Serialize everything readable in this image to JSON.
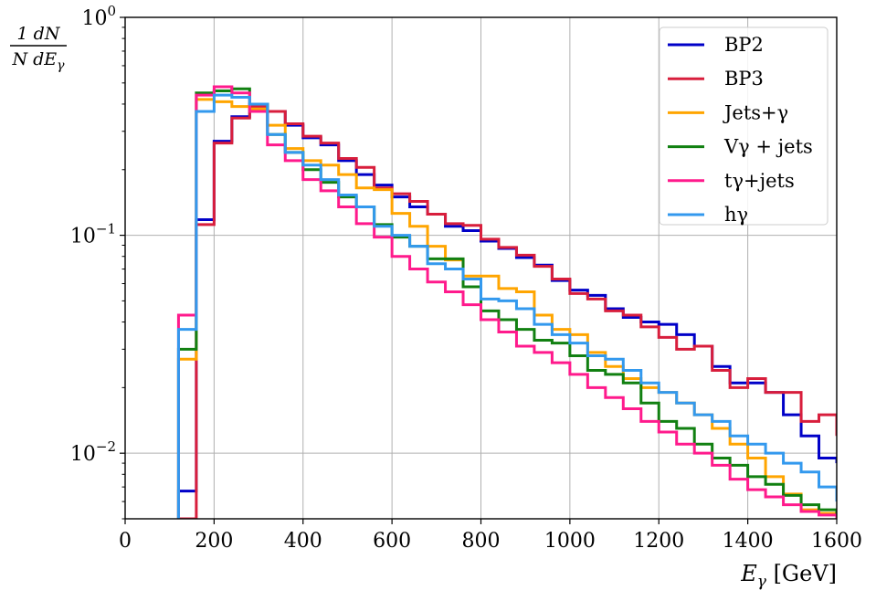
{
  "chart_data": {
    "type": "line",
    "step": true,
    "xscale": "linear",
    "yscale": "log",
    "xlim": [
      0,
      1600
    ],
    "ylim": [
      0.005,
      1
    ],
    "grid": true,
    "legend_position": "top-right",
    "xlabel": {
      "symbol": "E",
      "sub": "γ",
      "unit": " [GeV]"
    },
    "ylabel": {
      "numerator": "1 dN",
      "denominator_pre": "N dE",
      "denominator_sub": "γ"
    },
    "x_ticks": [
      0,
      200,
      400,
      600,
      800,
      1000,
      1200,
      1400,
      1600
    ],
    "y_ticks": [
      {
        "value": 1,
        "base": "10",
        "exp": "0"
      },
      {
        "value": 0.1,
        "base": "10",
        "exp": "−1"
      },
      {
        "value": 0.01,
        "base": "10",
        "exp": "−2"
      }
    ],
    "bin_edges": [
      120,
      160,
      200,
      240,
      280,
      320,
      360,
      400,
      440,
      480,
      520,
      560,
      600,
      640,
      680,
      720,
      760,
      800,
      840,
      880,
      920,
      960,
      1000,
      1040,
      1080,
      1120,
      1160,
      1200,
      1240,
      1280,
      1320,
      1360,
      1400,
      1440,
      1480,
      1520,
      1560,
      1600
    ],
    "series": [
      {
        "name": "BP2",
        "color": "#0000c8",
        "values": [
          0.0067,
          0.118,
          0.27,
          0.35,
          0.4,
          0.37,
          0.32,
          0.28,
          0.26,
          0.22,
          0.19,
          0.17,
          0.15,
          0.135,
          0.125,
          0.11,
          0.105,
          0.094,
          0.087,
          0.079,
          0.073,
          0.062,
          0.056,
          0.053,
          0.046,
          0.042,
          0.04,
          0.039,
          0.035,
          0.031,
          0.025,
          0.021,
          0.021,
          0.019,
          0.015,
          0.012,
          0.0095,
          0.009
        ]
      },
      {
        "name": "BP3",
        "color": "#d81e3c",
        "values": [
          0.0045,
          0.112,
          0.265,
          0.345,
          0.39,
          0.37,
          0.325,
          0.285,
          0.265,
          0.225,
          0.205,
          0.165,
          0.155,
          0.143,
          0.125,
          0.113,
          0.111,
          0.096,
          0.088,
          0.081,
          0.072,
          0.063,
          0.054,
          0.051,
          0.045,
          0.043,
          0.038,
          0.034,
          0.03,
          0.031,
          0.024,
          0.02,
          0.022,
          0.019,
          0.019,
          0.014,
          0.015,
          0.012
        ]
      },
      {
        "name": "Jets+γ",
        "color": "#ffa500",
        "values": [
          0.027,
          0.42,
          0.41,
          0.39,
          0.38,
          0.32,
          0.25,
          0.22,
          0.21,
          0.19,
          0.165,
          0.162,
          0.126,
          0.11,
          0.089,
          0.077,
          0.065,
          0.065,
          0.057,
          0.055,
          0.043,
          0.037,
          0.035,
          0.029,
          0.025,
          0.022,
          0.02,
          0.019,
          0.017,
          0.015,
          0.013,
          0.011,
          0.0095,
          0.0078,
          0.0065,
          0.0055,
          0.0053,
          0.005
        ]
      },
      {
        "name": "Vγ + jets",
        "color": "#118011",
        "values": [
          0.03,
          0.45,
          0.46,
          0.47,
          0.4,
          0.29,
          0.24,
          0.2,
          0.175,
          0.15,
          0.135,
          0.112,
          0.098,
          0.089,
          0.078,
          0.078,
          0.058,
          0.045,
          0.041,
          0.037,
          0.033,
          0.032,
          0.028,
          0.024,
          0.023,
          0.021,
          0.017,
          0.014,
          0.013,
          0.011,
          0.0095,
          0.0088,
          0.0078,
          0.0072,
          0.0064,
          0.0058,
          0.0055,
          0.005
        ]
      },
      {
        "name": "tγ+jets",
        "color": "#ff1a8c",
        "values": [
          0.043,
          0.44,
          0.48,
          0.45,
          0.37,
          0.26,
          0.22,
          0.18,
          0.16,
          0.135,
          0.113,
          0.098,
          0.08,
          0.07,
          0.061,
          0.055,
          0.048,
          0.041,
          0.036,
          0.031,
          0.029,
          0.026,
          0.023,
          0.02,
          0.018,
          0.016,
          0.014,
          0.0125,
          0.011,
          0.01,
          0.0088,
          0.0076,
          0.0068,
          0.0063,
          0.0058,
          0.0054,
          0.0052,
          0.005
        ]
      },
      {
        "name": "hγ",
        "color": "#3399ee",
        "values": [
          0.037,
          0.37,
          0.44,
          0.43,
          0.4,
          0.29,
          0.24,
          0.21,
          0.18,
          0.153,
          0.135,
          0.11,
          0.1,
          0.089,
          0.074,
          0.07,
          0.063,
          0.051,
          0.05,
          0.046,
          0.039,
          0.035,
          0.032,
          0.028,
          0.027,
          0.024,
          0.021,
          0.019,
          0.017,
          0.015,
          0.014,
          0.012,
          0.011,
          0.01,
          0.009,
          0.0082,
          0.007,
          0.006
        ]
      }
    ]
  }
}
